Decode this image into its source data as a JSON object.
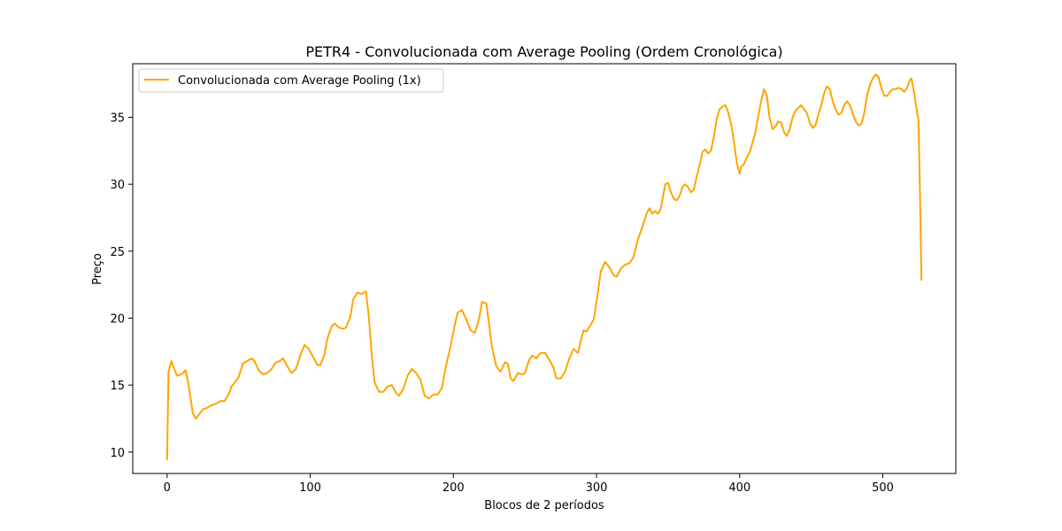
{
  "chart_data": {
    "type": "line",
    "title": "PETR4 - Convolucionada com Average Pooling (Ordem Cronológica)",
    "xlabel": "Blocos de 2 períodos",
    "ylabel": "Preço",
    "xlim": [
      -24,
      551
    ],
    "ylim": [
      8.4,
      39.0
    ],
    "xticks": [
      0,
      100,
      200,
      300,
      400,
      500
    ],
    "yticks": [
      10,
      15,
      20,
      25,
      30,
      35
    ],
    "grid": false,
    "legend_position": "top-left",
    "series": [
      {
        "name": "Convolucionada com Average Pooling (1x)",
        "color": "#FFA500",
        "points": [
          [
            0,
            9.4
          ],
          [
            1,
            16.0
          ],
          [
            3,
            16.8
          ],
          [
            5,
            16.2
          ],
          [
            7,
            15.7
          ],
          [
            10,
            15.8
          ],
          [
            13,
            16.1
          ],
          [
            15,
            15.0
          ],
          [
            18,
            12.9
          ],
          [
            20,
            12.5
          ],
          [
            23,
            12.9
          ],
          [
            25,
            13.2
          ],
          [
            28,
            13.3
          ],
          [
            31,
            13.5
          ],
          [
            34,
            13.6
          ],
          [
            37,
            13.8
          ],
          [
            40,
            13.8
          ],
          [
            43,
            14.3
          ],
          [
            45,
            14.9
          ],
          [
            48,
            15.3
          ],
          [
            50,
            15.6
          ],
          [
            53,
            16.6
          ],
          [
            56,
            16.8
          ],
          [
            59,
            17.0
          ],
          [
            61,
            16.8
          ],
          [
            64,
            16.1
          ],
          [
            67,
            15.8
          ],
          [
            70,
            15.9
          ],
          [
            73,
            16.2
          ],
          [
            76,
            16.7
          ],
          [
            79,
            16.8
          ],
          [
            81,
            17.0
          ],
          [
            84,
            16.4
          ],
          [
            87,
            15.9
          ],
          [
            90,
            16.2
          ],
          [
            93,
            17.2
          ],
          [
            96,
            18.0
          ],
          [
            99,
            17.7
          ],
          [
            102,
            17.1
          ],
          [
            105,
            16.5
          ],
          [
            107,
            16.5
          ],
          [
            110,
            17.3
          ],
          [
            112,
            18.5
          ],
          [
            115,
            19.4
          ],
          [
            117,
            19.6
          ],
          [
            120,
            19.3
          ],
          [
            123,
            19.2
          ],
          [
            125,
            19.3
          ],
          [
            128,
            20.1
          ],
          [
            130,
            21.4
          ],
          [
            133,
            21.9
          ],
          [
            136,
            21.8
          ],
          [
            139,
            22.0
          ],
          [
            141,
            20.0
          ],
          [
            143,
            17.2
          ],
          [
            145,
            15.2
          ],
          [
            148,
            14.5
          ],
          [
            151,
            14.5
          ],
          [
            154,
            14.9
          ],
          [
            157,
            15.0
          ],
          [
            160,
            14.4
          ],
          [
            162,
            14.2
          ],
          [
            165,
            14.7
          ],
          [
            168,
            15.7
          ],
          [
            171,
            16.2
          ],
          [
            174,
            15.9
          ],
          [
            177,
            15.4
          ],
          [
            180,
            14.2
          ],
          [
            183,
            14.0
          ],
          [
            186,
            14.3
          ],
          [
            189,
            14.3
          ],
          [
            192,
            14.8
          ],
          [
            195,
            16.5
          ],
          [
            198,
            17.9
          ],
          [
            201,
            19.5
          ],
          [
            203,
            20.4
          ],
          [
            206,
            20.6
          ],
          [
            209,
            19.9
          ],
          [
            212,
            19.1
          ],
          [
            215,
            18.9
          ],
          [
            218,
            20.0
          ],
          [
            220,
            21.2
          ],
          [
            223,
            21.1
          ],
          [
            225,
            19.5
          ],
          [
            227,
            17.8
          ],
          [
            230,
            16.4
          ],
          [
            233,
            16.0
          ],
          [
            236,
            16.7
          ],
          [
            238,
            16.6
          ],
          [
            240,
            15.5
          ],
          [
            242,
            15.3
          ],
          [
            245,
            15.9
          ],
          [
            248,
            15.8
          ],
          [
            250,
            15.9
          ],
          [
            253,
            16.9
          ],
          [
            255,
            17.2
          ],
          [
            258,
            17.0
          ],
          [
            261,
            17.4
          ],
          [
            264,
            17.4
          ],
          [
            267,
            16.9
          ],
          [
            270,
            16.3
          ],
          [
            272,
            15.5
          ],
          [
            275,
            15.5
          ],
          [
            278,
            16.0
          ],
          [
            281,
            17.0
          ],
          [
            284,
            17.7
          ],
          [
            287,
            17.4
          ],
          [
            289,
            18.3
          ],
          [
            291,
            19.1
          ],
          [
            293,
            19.0
          ],
          [
            296,
            19.5
          ],
          [
            298,
            19.9
          ],
          [
            300,
            21.2
          ],
          [
            303,
            23.5
          ],
          [
            306,
            24.2
          ],
          [
            309,
            23.8
          ],
          [
            312,
            23.2
          ],
          [
            314,
            23.1
          ],
          [
            317,
            23.7
          ],
          [
            320,
            24.0
          ],
          [
            323,
            24.1
          ],
          [
            326,
            24.6
          ],
          [
            329,
            25.9
          ],
          [
            332,
            26.8
          ],
          [
            335,
            27.8
          ],
          [
            337,
            28.2
          ],
          [
            339,
            27.8
          ],
          [
            341,
            28.0
          ],
          [
            343,
            27.8
          ],
          [
            345,
            28.2
          ],
          [
            348,
            30.0
          ],
          [
            350,
            30.1
          ],
          [
            352,
            29.4
          ],
          [
            354,
            28.9
          ],
          [
            356,
            28.8
          ],
          [
            358,
            29.1
          ],
          [
            360,
            29.8
          ],
          [
            362,
            30.0
          ],
          [
            364,
            29.8
          ],
          [
            366,
            29.4
          ],
          [
            368,
            29.6
          ],
          [
            370,
            30.6
          ],
          [
            372,
            31.4
          ],
          [
            374,
            32.4
          ],
          [
            376,
            32.6
          ],
          [
            378,
            32.3
          ],
          [
            380,
            32.5
          ],
          [
            382,
            33.6
          ],
          [
            384,
            34.9
          ],
          [
            386,
            35.6
          ],
          [
            388,
            35.8
          ],
          [
            390,
            35.9
          ],
          [
            392,
            35.4
          ],
          [
            394,
            34.5
          ],
          [
            396,
            33.2
          ],
          [
            398,
            31.6
          ],
          [
            400,
            30.8
          ],
          [
            401,
            31.3
          ],
          [
            403,
            31.5
          ],
          [
            405,
            32.0
          ],
          [
            407,
            32.4
          ],
          [
            409,
            33.1
          ],
          [
            411,
            33.9
          ],
          [
            413,
            35.1
          ],
          [
            415,
            36.2
          ],
          [
            417,
            37.1
          ],
          [
            419,
            36.6
          ],
          [
            421,
            34.9
          ],
          [
            423,
            34.1
          ],
          [
            425,
            34.3
          ],
          [
            427,
            34.7
          ],
          [
            429,
            34.6
          ],
          [
            431,
            33.9
          ],
          [
            433,
            33.6
          ],
          [
            435,
            34.1
          ],
          [
            437,
            35.0
          ],
          [
            439,
            35.5
          ],
          [
            441,
            35.7
          ],
          [
            443,
            35.9
          ],
          [
            445,
            35.6
          ],
          [
            447,
            35.3
          ],
          [
            449,
            34.6
          ],
          [
            451,
            34.2
          ],
          [
            453,
            34.4
          ],
          [
            455,
            35.2
          ],
          [
            457,
            35.9
          ],
          [
            459,
            36.8
          ],
          [
            461,
            37.3
          ],
          [
            463,
            37.1
          ],
          [
            465,
            36.2
          ],
          [
            467,
            35.6
          ],
          [
            469,
            35.2
          ],
          [
            471,
            35.3
          ],
          [
            473,
            35.9
          ],
          [
            475,
            36.2
          ],
          [
            477,
            35.9
          ],
          [
            479,
            35.3
          ],
          [
            481,
            34.7
          ],
          [
            483,
            34.4
          ],
          [
            485,
            34.5
          ],
          [
            487,
            35.3
          ],
          [
            489,
            36.6
          ],
          [
            491,
            37.4
          ],
          [
            493,
            37.9
          ],
          [
            495,
            38.2
          ],
          [
            497,
            38.0
          ],
          [
            499,
            37.2
          ],
          [
            501,
            36.6
          ],
          [
            503,
            36.6
          ],
          [
            505,
            36.9
          ],
          [
            507,
            37.1
          ],
          [
            509,
            37.1
          ],
          [
            511,
            37.2
          ],
          [
            513,
            37.1
          ],
          [
            515,
            36.9
          ],
          [
            517,
            37.2
          ],
          [
            519,
            37.8
          ],
          [
            520,
            37.9
          ],
          [
            522,
            36.8
          ],
          [
            524,
            35.3
          ],
          [
            525,
            34.8
          ],
          [
            526,
            29.0
          ],
          [
            527,
            22.8
          ]
        ]
      }
    ]
  }
}
